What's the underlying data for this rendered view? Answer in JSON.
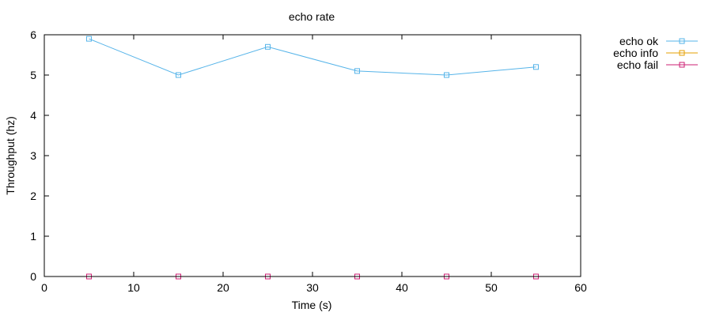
{
  "chart_data": {
    "type": "line",
    "title": "echo rate",
    "xlabel": "Time (s)",
    "ylabel": "Throughput (hz)",
    "xlim": [
      0,
      60
    ],
    "ylim": [
      0,
      6
    ],
    "xticks": [
      0,
      10,
      20,
      30,
      40,
      50,
      60
    ],
    "yticks": [
      0,
      1,
      2,
      3,
      4,
      5,
      6
    ],
    "grid": false,
    "legend_position": "outside-top-right",
    "x": [
      5,
      15,
      25,
      35,
      45,
      55
    ],
    "series": [
      {
        "name": "echo ok",
        "color": "#56b4e9",
        "marker": "square",
        "values": [
          5.9,
          5.0,
          5.7,
          5.1,
          5.0,
          5.2
        ]
      },
      {
        "name": "echo info",
        "color": "#e69f00",
        "marker": "square",
        "values": [
          0,
          0,
          0,
          0,
          0,
          0
        ]
      },
      {
        "name": "echo fail",
        "color": "#cc1f73",
        "marker": "square",
        "values": [
          0,
          0,
          0,
          0,
          0,
          0
        ]
      }
    ]
  }
}
